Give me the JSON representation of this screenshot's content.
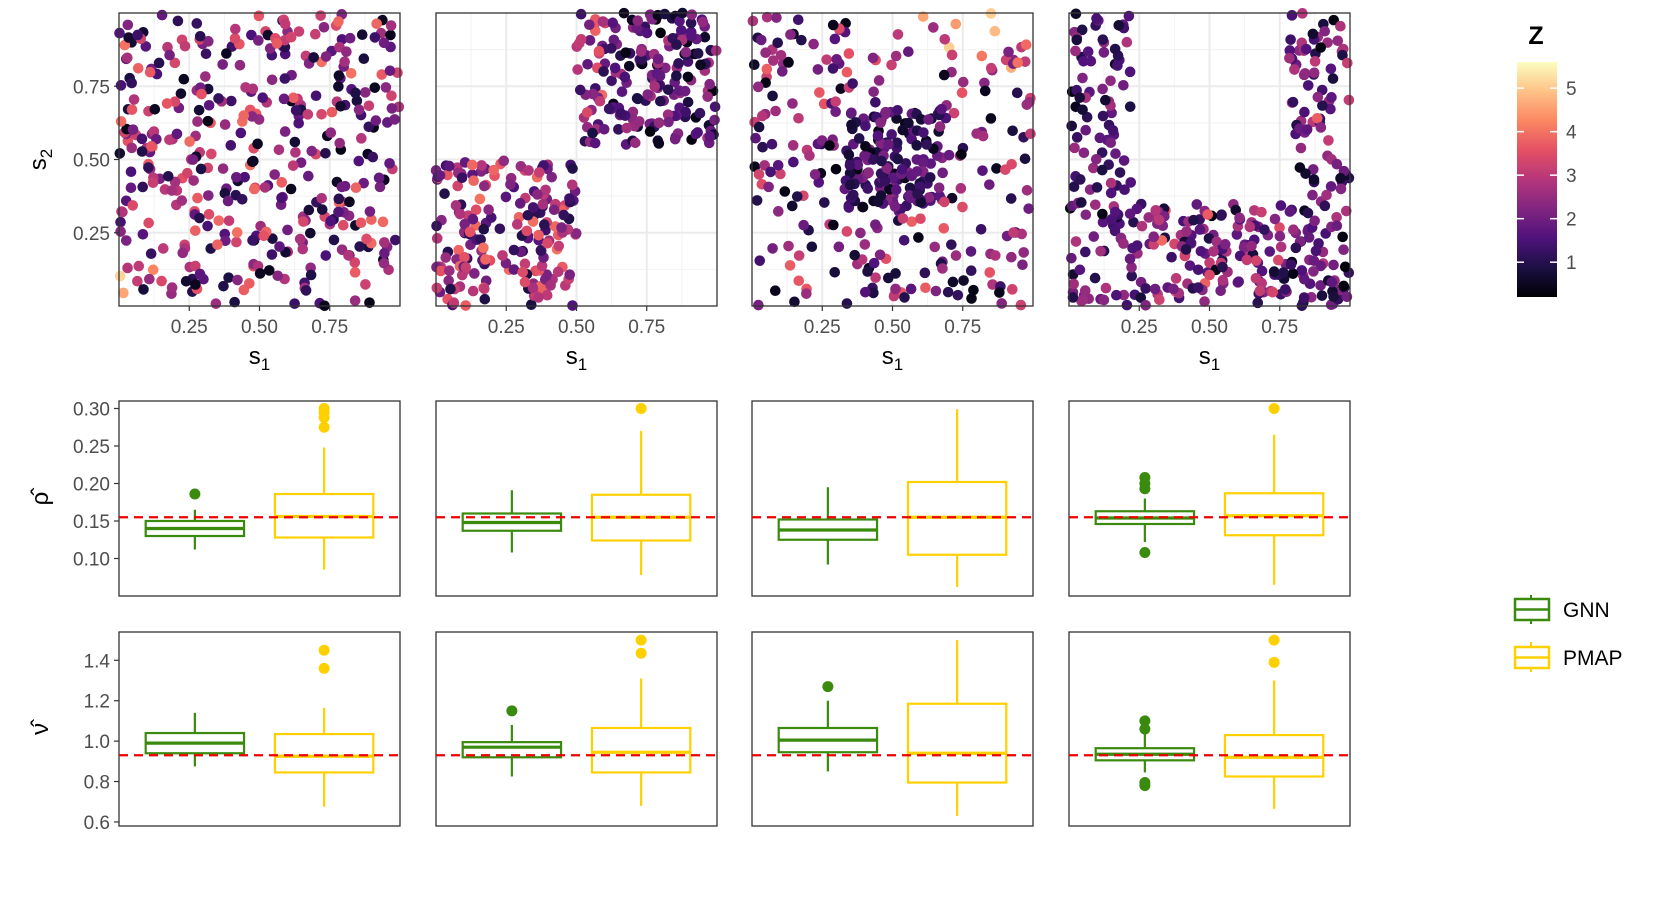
{
  "chart_data": [
    {
      "type": "scatter",
      "panel": 1,
      "title": "",
      "xlabel": "s",
      "xlabel_sub": "1",
      "ylabel": "s",
      "ylabel_sub": "2",
      "xlim": [
        0,
        1
      ],
      "ylim": [
        0,
        1
      ],
      "x_ticks": [
        0.25,
        0.5,
        0.75
      ],
      "x_tick_labels": [
        "0.25",
        "0.50",
        "0.75"
      ],
      "y_ticks": [
        0.25,
        0.5,
        0.75
      ],
      "y_tick_labels": [
        "0.25",
        "0.50",
        "0.75"
      ],
      "pattern": "uniform",
      "description_of_values": "approx. 400 locations spread uniformly over the unit square coloured by Z",
      "z_range": [
        0.2,
        5.5
      ],
      "n_points": 400
    },
    {
      "type": "scatter",
      "panel": 2,
      "xlabel": "s",
      "xlabel_sub": "1",
      "xlim": [
        0,
        1
      ],
      "ylim": [
        0,
        1
      ],
      "x_ticks": [
        0.25,
        0.5,
        0.75
      ],
      "x_tick_labels": [
        "0.25",
        "0.50",
        "0.75"
      ],
      "pattern": "two-blocks",
      "n_points": 400
    },
    {
      "type": "scatter",
      "panel": 3,
      "xlabel": "s",
      "xlabel_sub": "1",
      "xlim": [
        0,
        1
      ],
      "ylim": [
        0,
        1
      ],
      "x_ticks": [
        0.25,
        0.5,
        0.75
      ],
      "x_tick_labels": [
        "0.25",
        "0.50",
        "0.75"
      ],
      "pattern": "center-cluster",
      "n_points": 400
    },
    {
      "type": "scatter",
      "panel": 4,
      "xlabel": "s",
      "xlabel_sub": "1",
      "xlim": [
        0,
        1
      ],
      "ylim": [
        0,
        1
      ],
      "x_ticks": [
        0.25,
        0.5,
        0.75
      ],
      "x_tick_labels": [
        "0.25",
        "0.50",
        "0.75"
      ],
      "pattern": "u-shape",
      "n_points": 400
    },
    {
      "type": "boxplot",
      "row": "rho",
      "ylabel": "ρ̂",
      "ylim": [
        0.05,
        0.31
      ],
      "y_ticks": [
        0.1,
        0.15,
        0.2,
        0.25,
        0.3
      ],
      "y_tick_labels": [
        "0.10",
        "0.15",
        "0.20",
        "0.25",
        "0.30"
      ],
      "true_value": 0.155,
      "panels": [
        {
          "GNN": {
            "min": 0.112,
            "q1": 0.13,
            "median": 0.14,
            "q3": 0.15,
            "max": 0.165,
            "outliers": [
              0.186
            ]
          },
          "PMAP": {
            "min": 0.085,
            "q1": 0.128,
            "median": 0.156,
            "q3": 0.186,
            "max": 0.248,
            "outliers": [
              0.275,
              0.288,
              0.295,
              0.3
            ]
          }
        },
        {
          "GNN": {
            "min": 0.108,
            "q1": 0.137,
            "median": 0.148,
            "q3": 0.16,
            "max": 0.191,
            "outliers": []
          },
          "PMAP": {
            "min": 0.078,
            "q1": 0.124,
            "median": 0.155,
            "q3": 0.185,
            "max": 0.27,
            "outliers": [
              0.3
            ]
          }
        },
        {
          "GNN": {
            "min": 0.092,
            "q1": 0.125,
            "median": 0.138,
            "q3": 0.152,
            "max": 0.195,
            "outliers": []
          },
          "PMAP": {
            "min": 0.062,
            "q1": 0.105,
            "median": 0.155,
            "q3": 0.202,
            "max": 0.299,
            "outliers": []
          }
        },
        {
          "GNN": {
            "min": 0.122,
            "q1": 0.146,
            "median": 0.154,
            "q3": 0.163,
            "max": 0.18,
            "outliers": [
              0.108,
              0.193,
              0.2,
              0.208
            ]
          },
          "PMAP": {
            "min": 0.065,
            "q1": 0.131,
            "median": 0.157,
            "q3": 0.187,
            "max": 0.265,
            "outliers": [
              0.3
            ]
          }
        }
      ]
    },
    {
      "type": "boxplot",
      "row": "nu",
      "ylabel": "ν̂",
      "ylim": [
        0.58,
        1.54
      ],
      "y_ticks": [
        0.6,
        0.8,
        1.0,
        1.2,
        1.4
      ],
      "y_tick_labels": [
        "0.6",
        "0.8",
        "1.0",
        "1.2",
        "1.4"
      ],
      "true_value": 0.93,
      "panels": [
        {
          "GNN": {
            "min": 0.875,
            "q1": 0.94,
            "median": 0.99,
            "q3": 1.04,
            "max": 1.14,
            "outliers": []
          },
          "PMAP": {
            "min": 0.675,
            "q1": 0.845,
            "median": 0.925,
            "q3": 1.035,
            "max": 1.165,
            "outliers": [
              1.36,
              1.45
            ]
          }
        },
        {
          "GNN": {
            "min": 0.825,
            "q1": 0.92,
            "median": 0.97,
            "q3": 0.995,
            "max": 1.08,
            "outliers": [
              1.15
            ]
          },
          "PMAP": {
            "min": 0.68,
            "q1": 0.845,
            "median": 0.945,
            "q3": 1.065,
            "max": 1.31,
            "outliers": [
              1.435,
              1.5
            ]
          }
        },
        {
          "GNN": {
            "min": 0.85,
            "q1": 0.945,
            "median": 1.005,
            "q3": 1.065,
            "max": 1.2,
            "outliers": [
              1.27
            ]
          },
          "PMAP": {
            "min": 0.63,
            "q1": 0.795,
            "median": 0.94,
            "q3": 1.185,
            "max": 1.5,
            "outliers": []
          }
        },
        {
          "GNN": {
            "min": 0.845,
            "q1": 0.905,
            "median": 0.935,
            "q3": 0.965,
            "max": 1.04,
            "outliers": [
              0.78,
              0.795,
              1.06,
              1.1
            ]
          },
          "PMAP": {
            "min": 0.665,
            "q1": 0.825,
            "median": 0.92,
            "q3": 1.03,
            "max": 1.3,
            "outliers": [
              1.39,
              1.5
            ]
          }
        }
      ]
    }
  ],
  "colorbar": {
    "title": "Z",
    "min": 0.2,
    "max": 5.6,
    "ticks": [
      1,
      2,
      3,
      4,
      5
    ],
    "tick_labels": [
      "1",
      "2",
      "3",
      "4",
      "5"
    ],
    "palette": [
      "#000004",
      "#1c1044",
      "#4f127b",
      "#812581",
      "#b5367a",
      "#e55064",
      "#fb8761",
      "#fec287",
      "#fcfdbf"
    ]
  },
  "legend": {
    "entries": [
      {
        "label": "GNN",
        "color": "#3a8a0e"
      },
      {
        "label": "PMAP",
        "color": "#ffd000"
      }
    ]
  },
  "reference_line_color": "#ee0000"
}
